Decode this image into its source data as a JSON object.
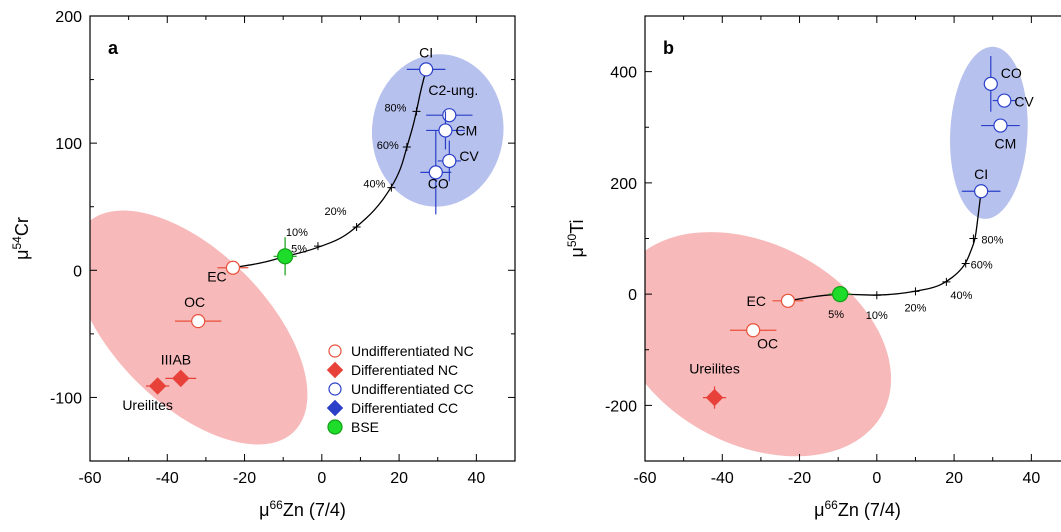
{
  "chart_data": [
    {
      "panel": "a",
      "type": "scatter",
      "xlabel": {
        "pre": "μ",
        "sup": "66",
        "post": "Zn (7/4)"
      },
      "ylabel": {
        "pre": "μ",
        "sup": "54",
        "post": "Cr"
      },
      "xlim": [
        -60,
        50
      ],
      "ylim": [
        -150,
        200
      ],
      "xticks": [
        -60,
        -40,
        -20,
        0,
        20,
        40
      ],
      "yticks": [
        -100,
        0,
        100,
        200
      ],
      "ellipses": [
        {
          "group": "NC",
          "color": "#f08080",
          "cx": -34,
          "cy": -45,
          "rx": 38,
          "ry": 60,
          "rot": 45
        },
        {
          "group": "CC",
          "color": "#7b8ee0",
          "cx": 30,
          "cy": 110,
          "rx": 17,
          "ry": 60,
          "rot": 5
        }
      ],
      "points": [
        {
          "label": "CI",
          "x": 27,
          "y": 158,
          "xerr": 5,
          "yerr": 0,
          "kind": "undiff_cc"
        },
        {
          "label": "C2-ung.",
          "x": 33,
          "y": 122,
          "xerr": 6,
          "yerr": 0,
          "kind": "undiff_cc"
        },
        {
          "label": "CM",
          "x": 32,
          "y": 110,
          "xerr": 5,
          "yerr": 15,
          "kind": "undiff_cc"
        },
        {
          "label": "CV",
          "x": 33,
          "y": 86,
          "xerr": 3,
          "yerr": 16,
          "kind": "undiff_cc"
        },
        {
          "label": "CO",
          "x": 29.5,
          "y": 77,
          "xerr": 4,
          "yerr": 33,
          "kind": "undiff_cc"
        },
        {
          "label": "EC",
          "x": -23,
          "y": 2,
          "xerr": 4,
          "yerr": 0,
          "kind": "undiff_nc"
        },
        {
          "label": "OC",
          "x": -32,
          "y": -40,
          "xerr": 6,
          "yerr": 0,
          "kind": "undiff_nc"
        },
        {
          "label": "IIIAB",
          "x": -36.5,
          "y": -85,
          "xerr": 4,
          "yerr": 0,
          "kind": "diff_nc"
        },
        {
          "label": "Ureilites",
          "x": -42.5,
          "y": -91,
          "xerr": 3,
          "yerr": 0,
          "kind": "diff_nc"
        },
        {
          "label": "",
          "x": -9.5,
          "y": 11,
          "xerr": 3,
          "yerr": 15,
          "kind": "bse"
        }
      ],
      "mixing_curve": [
        [
          -23,
          2
        ],
        [
          -15,
          6
        ],
        [
          -9.5,
          11
        ],
        [
          -5,
          14
        ],
        [
          0,
          19
        ],
        [
          5,
          25
        ],
        [
          9,
          34
        ],
        [
          14,
          48
        ],
        [
          18,
          65
        ],
        [
          20.5,
          80
        ],
        [
          22,
          97
        ],
        [
          23.5,
          112
        ],
        [
          24.5,
          125
        ],
        [
          25.5,
          140
        ],
        [
          26.5,
          152
        ],
        [
          27,
          158
        ]
      ],
      "curve_marks": [
        {
          "label": "5%",
          "x": -9.5,
          "y": 11
        },
        {
          "label": "10%",
          "x": -1,
          "y": 19
        },
        {
          "label": "20%",
          "x": 9,
          "y": 34
        },
        {
          "label": "40%",
          "x": 18,
          "y": 65
        },
        {
          "label": "60%",
          "x": 22,
          "y": 97
        },
        {
          "label": "80%",
          "x": 24.5,
          "y": 125
        }
      ],
      "legend": [
        {
          "label": "Undifferentiated NC",
          "kind": "undiff_nc"
        },
        {
          "label": "Differentiated NC",
          "kind": "diff_nc"
        },
        {
          "label": "Undifferentiated CC",
          "kind": "undiff_cc"
        },
        {
          "label": "Differentiated CC",
          "kind": "diff_cc"
        },
        {
          "label": "BSE",
          "kind": "bse"
        }
      ],
      "legend_position": "bottom-right"
    },
    {
      "panel": "b",
      "type": "scatter",
      "xlabel": {
        "pre": "μ",
        "sup": "66",
        "post": "Zn (7/4)"
      },
      "ylabel": {
        "pre": "μ",
        "sup": "50",
        "post": "Ti"
      },
      "xlim": [
        -60,
        50
      ],
      "ylim": [
        -300,
        500
      ],
      "xticks": [
        -60,
        -40,
        -20,
        0,
        20,
        40
      ],
      "yticks": [
        -200,
        0,
        200,
        400
      ],
      "ellipses": [
        {
          "group": "NC",
          "color": "#f08080",
          "cx": -32,
          "cy": -90,
          "rx": 38,
          "ry": 180,
          "rot": 28
        },
        {
          "group": "CC",
          "color": "#7b8ee0",
          "cx": 29,
          "cy": 290,
          "rx": 10,
          "ry": 155,
          "rot": 3
        }
      ],
      "points": [
        {
          "label": "CO",
          "x": 29.5,
          "y": 378,
          "xerr": 0,
          "yerr": 50,
          "kind": "undiff_cc"
        },
        {
          "label": "CV",
          "x": 33,
          "y": 348,
          "xerr": 3,
          "yerr": 0,
          "kind": "undiff_cc"
        },
        {
          "label": "CM",
          "x": 32,
          "y": 303,
          "xerr": 5,
          "yerr": 0,
          "kind": "undiff_cc"
        },
        {
          "label": "CI",
          "x": 27,
          "y": 185,
          "xerr": 5,
          "yerr": 0,
          "kind": "undiff_cc"
        },
        {
          "label": "EC",
          "x": -23,
          "y": -12,
          "xerr": 4,
          "yerr": 0,
          "kind": "undiff_nc"
        },
        {
          "label": "OC",
          "x": -32,
          "y": -65,
          "xerr": 6,
          "yerr": 0,
          "kind": "undiff_nc"
        },
        {
          "label": "Ureilites",
          "x": -42,
          "y": -186,
          "xerr": 3,
          "yerr": 20,
          "kind": "diff_nc"
        },
        {
          "label": "",
          "x": -9.5,
          "y": 0,
          "xerr": 3,
          "yerr": 0,
          "kind": "bse"
        }
      ],
      "mixing_curve": [
        [
          -23,
          -12
        ],
        [
          -15,
          -3
        ],
        [
          -9.5,
          0
        ],
        [
          -5,
          -1
        ],
        [
          0,
          -2
        ],
        [
          5,
          0
        ],
        [
          10,
          5
        ],
        [
          15,
          12
        ],
        [
          18,
          22
        ],
        [
          21,
          38
        ],
        [
          23,
          55
        ],
        [
          24.5,
          80
        ],
        [
          25.5,
          100
        ],
        [
          26.2,
          140
        ],
        [
          27,
          185
        ]
      ],
      "curve_marks": [
        {
          "label": "5%",
          "x": -9.5,
          "y": 0
        },
        {
          "label": "10%",
          "x": 0,
          "y": -2
        },
        {
          "label": "20%",
          "x": 10,
          "y": 5
        },
        {
          "label": "40%",
          "x": 18,
          "y": 22
        },
        {
          "label": "60%",
          "x": 23,
          "y": 55
        },
        {
          "label": "80%",
          "x": 25,
          "y": 100
        }
      ]
    }
  ]
}
